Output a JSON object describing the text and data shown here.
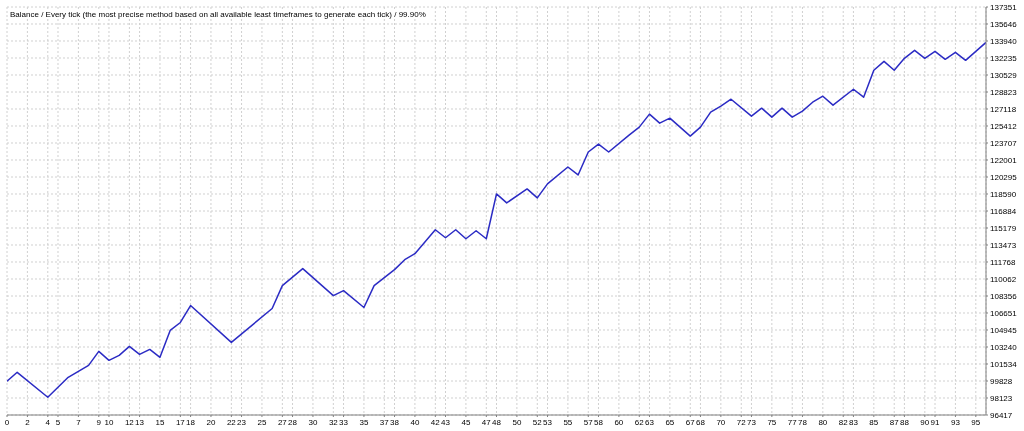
{
  "chart_data": {
    "type": "line",
    "title": "Balance / Every tick (the most precise method based on all available least timeframes to generate each tick) / 99.90%",
    "x": [
      0,
      1,
      4,
      6,
      8,
      9,
      10,
      11,
      12,
      13,
      14,
      15,
      16,
      17,
      18,
      22,
      26,
      27,
      29,
      32,
      33,
      35,
      36,
      38,
      39,
      40,
      42,
      43,
      44,
      45,
      46,
      47,
      48,
      49,
      51,
      52,
      53,
      55,
      56,
      57,
      58,
      59,
      61,
      62,
      63,
      64,
      65,
      67,
      68,
      69,
      70,
      71,
      73,
      74,
      75,
      76,
      77,
      78,
      79,
      80,
      81,
      83,
      84,
      85,
      86,
      87,
      88,
      89,
      90,
      91,
      92,
      93,
      94,
      95,
      96
    ],
    "series": [
      {
        "color": "#2b2bc4",
        "values": [
          99800,
          100700,
          98200,
          100200,
          101400,
          102800,
          101900,
          102400,
          103300,
          102500,
          103000,
          102200,
          104900,
          105700,
          107400,
          103700,
          107100,
          109400,
          111100,
          108400,
          108900,
          107200,
          109400,
          111000,
          112000,
          112600,
          115000,
          114200,
          115000,
          114100,
          114900,
          114100,
          118600,
          117700,
          119100,
          118200,
          119600,
          121300,
          120500,
          122800,
          123600,
          122800,
          124500,
          125300,
          126600,
          125700,
          126200,
          124400,
          125300,
          126800,
          127400,
          128100,
          126400,
          127200,
          126300,
          127200,
          126300,
          126900,
          127800,
          128400,
          127500,
          129100,
          128300,
          131000,
          131900,
          131000,
          132200,
          133000,
          132200,
          132900,
          132100,
          132800,
          132000,
          132900,
          133800
        ]
      }
    ],
    "xlim": [
      0,
      96
    ],
    "xticks": [
      0,
      2,
      4,
      5,
      7,
      9,
      10,
      12,
      13,
      15,
      17,
      18,
      20,
      22,
      23,
      25,
      27,
      28,
      30,
      32,
      33,
      35,
      37,
      38,
      40,
      42,
      43,
      45,
      47,
      48,
      50,
      52,
      53,
      55,
      57,
      58,
      60,
      62,
      63,
      65,
      67,
      68,
      70,
      72,
      73,
      75,
      77,
      78,
      80,
      82,
      83,
      85,
      87,
      88,
      90,
      91,
      93,
      95
    ],
    "ylim": [
      96417,
      137351
    ],
    "yticks": [
      96417,
      98123,
      99828,
      101534,
      103240,
      104945,
      106651,
      108356,
      110062,
      111768,
      113473,
      115179,
      116884,
      118590,
      120295,
      122001,
      123707,
      125412,
      127118,
      128823,
      130529,
      132235,
      133940,
      135646,
      137351
    ],
    "grid": true,
    "marker": "none"
  }
}
